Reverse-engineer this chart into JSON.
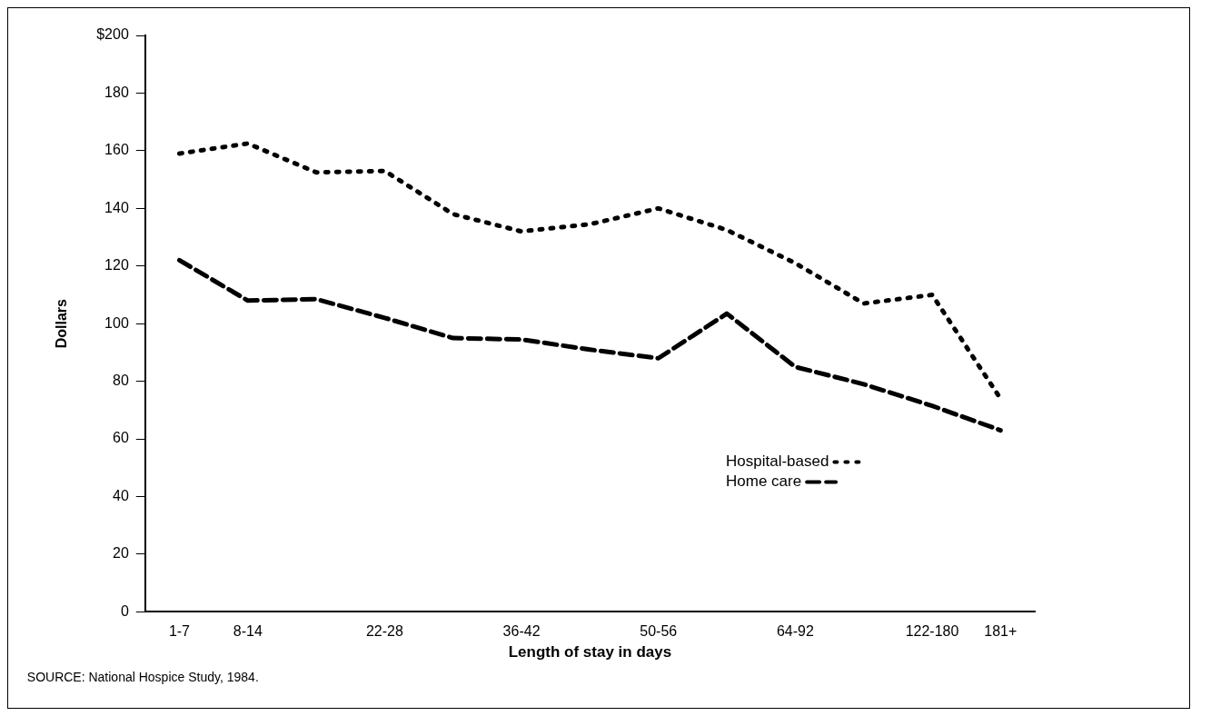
{
  "chart_data": {
    "type": "line",
    "xlabel": "Length of stay in days",
    "ylabel": "Dollars",
    "categories": [
      "1-7",
      "8-14",
      null,
      "22-28",
      null,
      "36-42",
      null,
      "50-56",
      null,
      "64-92",
      null,
      "122-180",
      "181+"
    ],
    "series": [
      {
        "name": "Hospital-based",
        "color": "#000000",
        "line_style": "dotted",
        "values": [
          159,
          162.5,
          152.5,
          153,
          138,
          132,
          134.5,
          140,
          132.5,
          121,
          107,
          110,
          74
        ]
      },
      {
        "name": "Home care",
        "color": "#000000",
        "line_style": "dashed",
        "values": [
          122,
          108,
          108.5,
          102,
          95,
          94.5,
          91,
          88,
          103.5,
          85,
          79,
          71.5,
          63
        ]
      }
    ],
    "ylim": [
      0,
      200
    ],
    "yticks": [
      0,
      20,
      40,
      60,
      80,
      100,
      120,
      140,
      160,
      180,
      {
        "value": 200,
        "label": "$200"
      }
    ],
    "grid": false,
    "legend": "bottom right",
    "marker": "none",
    "annotations": [
      "SOURCE: National Hospice Study, 1984."
    ]
  }
}
